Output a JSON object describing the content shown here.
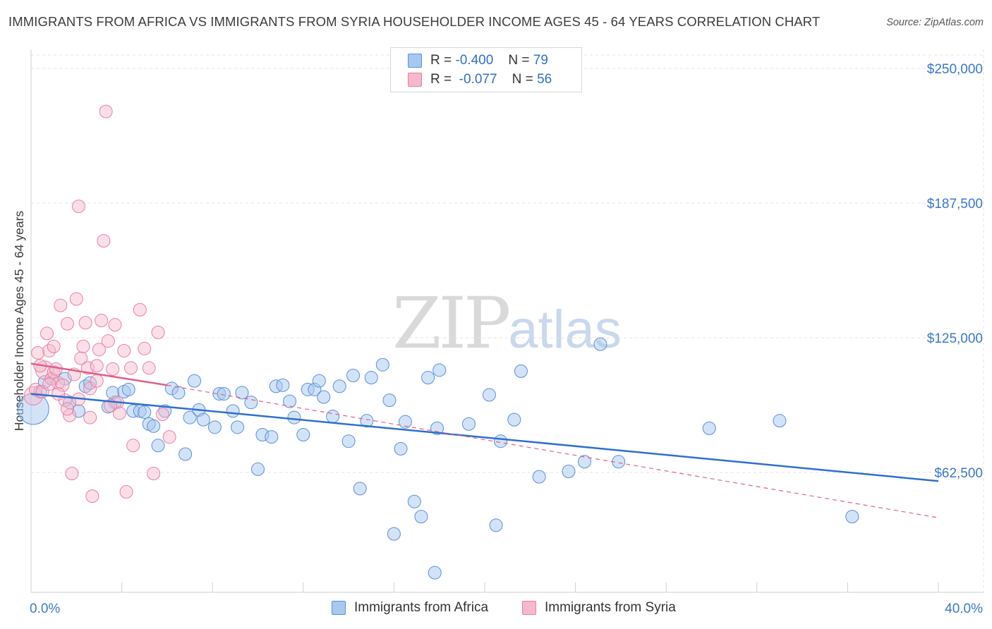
{
  "title": "IMMIGRANTS FROM AFRICA VS IMMIGRANTS FROM SYRIA HOUSEHOLDER INCOME AGES 45 - 64 YEARS CORRELATION CHART",
  "source": "Source: ZipAtlas.com",
  "watermark": {
    "zip": "ZIP",
    "atlas": "atlas"
  },
  "legend_stats": [
    {
      "r_label": "R =",
      "r_value": "-0.400",
      "n_label": "N =",
      "n_value": "79"
    },
    {
      "r_label": "R =",
      "r_value": "-0.077",
      "n_label": "N =",
      "n_value": "56"
    }
  ],
  "colors": {
    "africa_fill": "#a8c8f0",
    "africa_stroke": "#5b8fd6",
    "africa_line": "#2f6fd0",
    "syria_fill": "#f6b8cc",
    "syria_stroke": "#e8809f",
    "syria_line": "#e06088",
    "grid": "#e3e3e3",
    "axis_label": "#3a78c8"
  },
  "chart_data": {
    "type": "scatter",
    "title": "IMMIGRANTS FROM AFRICA VS IMMIGRANTS FROM SYRIA HOUSEHOLDER INCOME AGES 45 - 64 YEARS CORRELATION CHART",
    "xlabel": "",
    "ylabel": "Householder Income Ages 45 - 64 years",
    "xlim": [
      0,
      40
    ],
    "ylim": [
      0,
      262500
    ],
    "x_tick_labels": [
      "0.0%",
      "40.0%"
    ],
    "y_ticks": [
      62500,
      125000,
      187500,
      250000
    ],
    "y_tick_labels": [
      "$62,500",
      "$125,000",
      "$187,500",
      "$250,000"
    ],
    "series": [
      {
        "name": "Immigrants from Africa",
        "points": [
          [
            0.1,
            92000
          ],
          [
            0.4,
            100000
          ],
          [
            0.6,
            104500
          ],
          [
            0.9,
            106000
          ],
          [
            1.5,
            106000
          ],
          [
            1.7,
            95000
          ],
          [
            2.1,
            91000
          ],
          [
            2.4,
            102500
          ],
          [
            2.6,
            104000
          ],
          [
            3.7,
            95000
          ],
          [
            3.4,
            93000
          ],
          [
            3.6,
            99500
          ],
          [
            4.1,
            100000
          ],
          [
            4.3,
            101000
          ],
          [
            4.5,
            91000
          ],
          [
            4.8,
            91000
          ],
          [
            5.0,
            90500
          ],
          [
            5.2,
            85000
          ],
          [
            5.4,
            84000
          ],
          [
            5.6,
            75000
          ],
          [
            5.9,
            91000
          ],
          [
            6.2,
            101500
          ],
          [
            6.5,
            99500
          ],
          [
            6.8,
            71000
          ],
          [
            7.0,
            88000
          ],
          [
            7.2,
            105000
          ],
          [
            7.4,
            91500
          ],
          [
            7.6,
            87000
          ],
          [
            8.1,
            83500
          ],
          [
            8.3,
            99000
          ],
          [
            8.5,
            99000
          ],
          [
            8.9,
            91000
          ],
          [
            9.1,
            83500
          ],
          [
            9.3,
            99500
          ],
          [
            9.7,
            95000
          ],
          [
            10.0,
            64000
          ],
          [
            10.2,
            80000
          ],
          [
            10.6,
            79000
          ],
          [
            10.8,
            102500
          ],
          [
            11.1,
            103000
          ],
          [
            11.4,
            95500
          ],
          [
            11.6,
            88000
          ],
          [
            12.0,
            80000
          ],
          [
            12.2,
            101000
          ],
          [
            12.5,
            101000
          ],
          [
            12.7,
            105000
          ],
          [
            12.9,
            97500
          ],
          [
            13.3,
            88500
          ],
          [
            13.6,
            102500
          ],
          [
            14.0,
            77000
          ],
          [
            14.2,
            107500
          ],
          [
            14.5,
            55000
          ],
          [
            14.8,
            86500
          ],
          [
            15.0,
            106500
          ],
          [
            15.5,
            112500
          ],
          [
            15.8,
            96000
          ],
          [
            16.0,
            34000
          ],
          [
            16.3,
            73500
          ],
          [
            16.5,
            86000
          ],
          [
            16.9,
            49000
          ],
          [
            17.2,
            42000
          ],
          [
            17.5,
            106500
          ],
          [
            17.8,
            16000
          ],
          [
            18.0,
            110000
          ],
          [
            17.9,
            83000
          ],
          [
            19.3,
            85000
          ],
          [
            20.2,
            98500
          ],
          [
            20.5,
            38000
          ],
          [
            20.7,
            77000
          ],
          [
            21.3,
            87000
          ],
          [
            21.6,
            109500
          ],
          [
            22.4,
            60500
          ],
          [
            23.7,
            63000
          ],
          [
            24.4,
            67500
          ],
          [
            25.1,
            122000
          ],
          [
            25.9,
            67500
          ],
          [
            29.9,
            83000
          ],
          [
            33.0,
            86500
          ],
          [
            36.2,
            42000
          ]
        ],
        "trend": {
          "x": [
            0,
            40
          ],
          "y": [
            99000,
            58500
          ]
        }
      },
      {
        "name": "Immigrants from Syria",
        "points": [
          [
            0.1,
            98000
          ],
          [
            0.2,
            101000
          ],
          [
            0.3,
            118000
          ],
          [
            0.5,
            100000
          ],
          [
            0.6,
            110000
          ],
          [
            0.7,
            127000
          ],
          [
            0.8,
            119000
          ],
          [
            0.9,
            106000
          ],
          [
            1.0,
            109000
          ],
          [
            1.0,
            121000
          ],
          [
            1.1,
            110500
          ],
          [
            1.2,
            104000
          ],
          [
            1.3,
            140000
          ],
          [
            1.4,
            103000
          ],
          [
            1.5,
            96000
          ],
          [
            1.6,
            131500
          ],
          [
            1.7,
            89000
          ],
          [
            1.8,
            62000
          ],
          [
            2.0,
            143000
          ],
          [
            2.1,
            186000
          ],
          [
            2.1,
            96500
          ],
          [
            2.2,
            115500
          ],
          [
            2.3,
            121000
          ],
          [
            2.4,
            132000
          ],
          [
            2.5,
            111000
          ],
          [
            2.6,
            88000
          ],
          [
            2.6,
            101500
          ],
          [
            2.7,
            51500
          ],
          [
            2.9,
            112000
          ],
          [
            3.0,
            119500
          ],
          [
            3.1,
            133000
          ],
          [
            3.2,
            170000
          ],
          [
            3.3,
            230000
          ],
          [
            3.4,
            123500
          ],
          [
            3.6,
            110500
          ],
          [
            3.7,
            131000
          ],
          [
            3.8,
            95000
          ],
          [
            3.9,
            90000
          ],
          [
            4.1,
            119000
          ],
          [
            4.2,
            53500
          ],
          [
            4.4,
            111000
          ],
          [
            4.5,
            75000
          ],
          [
            4.8,
            138000
          ],
          [
            5.0,
            120000
          ],
          [
            5.2,
            111000
          ],
          [
            5.4,
            62000
          ],
          [
            5.6,
            127500
          ],
          [
            5.8,
            89500
          ],
          [
            6.1,
            79000
          ],
          [
            1.2,
            99000
          ],
          [
            0.8,
            103500
          ],
          [
            1.9,
            108000
          ],
          [
            0.4,
            112000
          ],
          [
            2.9,
            105000
          ],
          [
            3.5,
            93500
          ],
          [
            1.6,
            92000
          ]
        ],
        "trend_solid": {
          "x": [
            0,
            6.0
          ],
          "y": [
            113000,
            103000
          ]
        },
        "trend_dashed": {
          "x": [
            6.0,
            40
          ],
          "y": [
            103000,
            41500
          ]
        }
      }
    ]
  },
  "legend_bottom": [
    "Immigrants from Africa",
    "Immigrants from Syria"
  ],
  "x_axis": {
    "left_label": "0.0%",
    "right_label": "40.0%"
  },
  "y_axis_title": "Householder Income Ages 45 - 64 years"
}
